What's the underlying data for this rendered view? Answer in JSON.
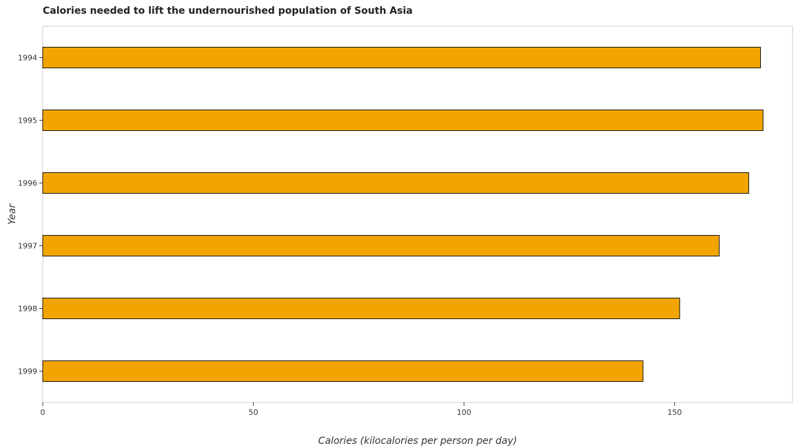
{
  "chart_data": {
    "type": "bar",
    "orientation": "horizontal",
    "title": "Calories needed to lift the undernourished population of South Asia",
    "xlabel": "Calories (kilocalories per person per day)",
    "ylabel": "Year",
    "categories": [
      "1994",
      "1995",
      "1996",
      "1997",
      "1998",
      "1999"
    ],
    "values": [
      170.4,
      171.0,
      167.6,
      160.6,
      151.2,
      142.5
    ],
    "xlim": [
      0,
      178
    ],
    "xticks": [
      0,
      50,
      100,
      150
    ],
    "bar_color": "#f2a500",
    "bar_edge_color": "#111111",
    "grid": false
  }
}
